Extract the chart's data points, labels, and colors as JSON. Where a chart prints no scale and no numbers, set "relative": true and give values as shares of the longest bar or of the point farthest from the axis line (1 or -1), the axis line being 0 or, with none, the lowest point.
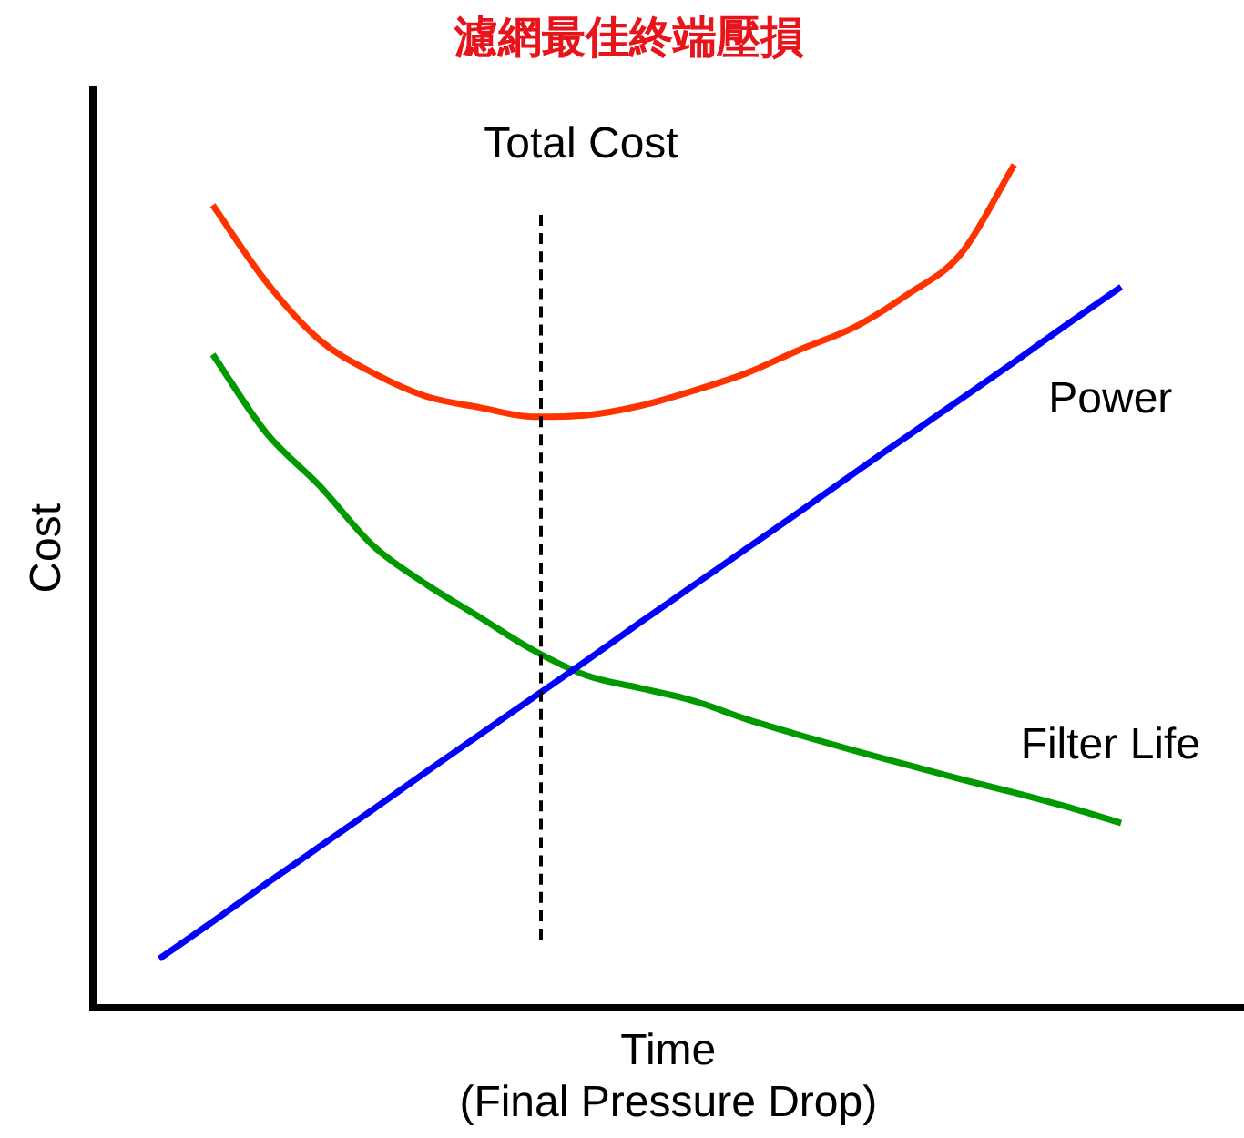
{
  "chart_data": {
    "type": "line",
    "title": "濾網最佳終端壓損",
    "xlabel": "Time\n(Final Pressure Drop)",
    "ylabel": "Cost",
    "relative": true,
    "grid": false,
    "legend": false,
    "marker": "none",
    "line_style": "solid",
    "categories": [
      null,
      null,
      null,
      null,
      null,
      null,
      null,
      null,
      null,
      null,
      null,
      null,
      null,
      null,
      null,
      null,
      null,
      null,
      null
    ],
    "series": [
      {
        "color": "#ff3300",
        "values": [
          null,
          0.952,
          0.861,
          0.792,
          0.753,
          0.725,
          0.712,
          0.701,
          0.703,
          0.714,
          0.732,
          0.753,
          0.781,
          0.807,
          0.846,
          0.894,
          1,
          null,
          null
        ]
      },
      {
        "name": "Power",
        "color": "#0000ff",
        "values": [
          0.058,
          0.102,
          0.147,
          0.191,
          0.235,
          0.28,
          0.324,
          0.368,
          0.412,
          0.457,
          0.501,
          0.545,
          0.589,
          0.634,
          0.678,
          0.722,
          0.766,
          0.811,
          0.855
        ]
      },
      {
        "name": "Filter Life",
        "color": "#009900",
        "values": [
          null,
          0.775,
          0.682,
          0.619,
          0.548,
          0.502,
          0.463,
          0.424,
          0.394,
          0.379,
          0.364,
          0.342,
          0.323,
          0.305,
          0.288,
          0.271,
          0.255,
          0.238,
          0.219
        ]
      }
    ],
    "annotations": [
      "Total Cost"
    ]
  }
}
